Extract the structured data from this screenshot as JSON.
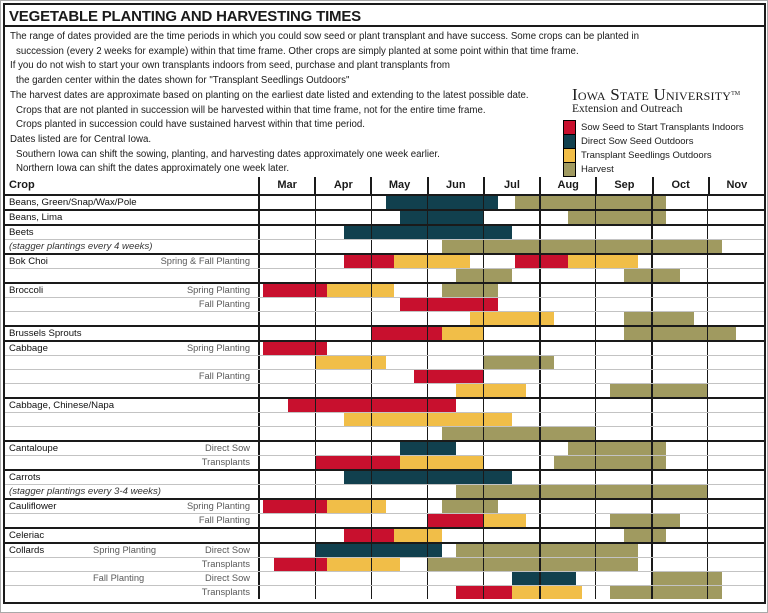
{
  "title": "VEGETABLE PLANTING AND HARVESTING TIMES",
  "notes": {
    "lines": [
      {
        "text": "The range of dates provided are the time periods in which you could sow seed or plant transplant and have success.  Some crops can be planted in",
        "indent": false
      },
      {
        "text": "succession (every 2 weeks for example) within that time frame. Other crops are simply planted at some point within that time frame.",
        "indent": true
      },
      {
        "text": "If you do not wish to start your own transplants indoors from seed, purchase and plant transplants from",
        "indent": false
      },
      {
        "text": "the garden center within the dates shown for \"Transplant Seedlings Outdoors\"",
        "indent": true
      },
      {
        "text": "The harvest dates are approximate based on planting on the earliest date listed and extending to the latest possible date.",
        "indent": false
      },
      {
        "text": "Crops that are not planted in succession will be harvested within that time frame, not for the entire time frame.",
        "indent": true
      },
      {
        "text": "Crops planted in succession could have sustained harvest within that time period.",
        "indent": true
      },
      {
        "text": "Dates listed are for Central Iowa.",
        "indent": false
      },
      {
        "text": "Southern Iowa can shift the sowing, planting, and harvesting dates approximately one week earlier.",
        "indent": true
      },
      {
        "text": "Northern Iowa can shift the dates approximately one week later.",
        "indent": true
      }
    ]
  },
  "logo": {
    "name": "Iowa State University",
    "tm": "TM",
    "subtitle": "Extension and Outreach"
  },
  "legend": {
    "items": [
      {
        "key": "red",
        "label": "Sow Seed to Start Transplants Indoors"
      },
      {
        "key": "teal",
        "label": "Direct Sow Seed Outdoors"
      },
      {
        "key": "yellow",
        "label": "Transplant Seedlings Outdoors"
      },
      {
        "key": "olive",
        "label": "Harvest"
      }
    ]
  },
  "colors": {
    "red": "#C8102E",
    "teal": "#11404E",
    "yellow": "#F1BE48",
    "olive": "#A09A60"
  },
  "header": {
    "crop_label": "Crop"
  },
  "chart_data": {
    "type": "gantt",
    "unit": "months (Mar=0 through Nov=8, fractional = part of month)",
    "month_span": 9,
    "months": [
      "Mar",
      "Apr",
      "May",
      "Jun",
      "Jul",
      "Aug",
      "Sep",
      "Oct",
      "Nov"
    ],
    "series_meaning": {
      "red": "Sow Seed to Start Transplants Indoors",
      "teal": "Direct Sow Seed Outdoors",
      "yellow": "Transplant Seedlings Outdoors",
      "olive": "Harvest"
    },
    "rows": [
      {
        "name": "Beans, Green/Snap/Wax/Pole",
        "group": true,
        "bars": [
          {
            "c": "teal",
            "s": 2.25,
            "e": 4.25
          },
          {
            "c": "olive",
            "s": 4.55,
            "e": 7.25
          }
        ]
      },
      {
        "name": "Beans, Lima",
        "group": true,
        "bars": [
          {
            "c": "teal",
            "s": 2.5,
            "e": 4.0
          },
          {
            "c": "olive",
            "s": 5.5,
            "e": 7.25
          }
        ]
      },
      {
        "name": "Beets",
        "group": true,
        "bars": [
          {
            "c": "teal",
            "s": 1.5,
            "e": 4.5
          }
        ]
      },
      {
        "name": "(stagger plantings every 4 weeks)",
        "italic": true,
        "bars": [
          {
            "c": "olive",
            "s": 3.25,
            "e": 8.25
          }
        ]
      },
      {
        "name": "Bok Choi",
        "method": "Spring & Fall Planting",
        "group": true,
        "bars": [
          {
            "c": "red",
            "s": 1.5,
            "e": 2.4
          },
          {
            "c": "yellow",
            "s": 2.4,
            "e": 3.75
          },
          {
            "c": "red",
            "s": 4.55,
            "e": 5.5
          },
          {
            "c": "yellow",
            "s": 5.5,
            "e": 6.75
          }
        ]
      },
      {
        "bars": [
          {
            "c": "olive",
            "s": 3.5,
            "e": 4.5
          },
          {
            "c": "olive",
            "s": 6.5,
            "e": 7.5
          }
        ]
      },
      {
        "name": "Broccoli",
        "method": "Spring Planting",
        "group": true,
        "bars": [
          {
            "c": "red",
            "s": 0.05,
            "e": 1.2
          },
          {
            "c": "yellow",
            "s": 1.2,
            "e": 2.4
          },
          {
            "c": "olive",
            "s": 3.25,
            "e": 4.25
          }
        ]
      },
      {
        "method": "Fall Planting",
        "bars": [
          {
            "c": "red",
            "s": 2.5,
            "e": 4.25
          }
        ]
      },
      {
        "bars": [
          {
            "c": "yellow",
            "s": 3.75,
            "e": 5.25
          },
          {
            "c": "olive",
            "s": 6.5,
            "e": 7.75
          }
        ]
      },
      {
        "name": "Brussels Sprouts",
        "group": true,
        "bars": [
          {
            "c": "red",
            "s": 2.0,
            "e": 3.25
          },
          {
            "c": "yellow",
            "s": 3.25,
            "e": 4.0
          },
          {
            "c": "olive",
            "s": 6.5,
            "e": 8.5
          }
        ]
      },
      {
        "name": "Cabbage",
        "method": "Spring Planting",
        "group": true,
        "bars": [
          {
            "c": "red",
            "s": 0.05,
            "e": 1.2
          }
        ]
      },
      {
        "bars": [
          {
            "c": "yellow",
            "s": 1.0,
            "e": 2.25
          },
          {
            "c": "olive",
            "s": 4.0,
            "e": 5.25
          }
        ]
      },
      {
        "method": "Fall Planting",
        "bars": [
          {
            "c": "red",
            "s": 2.75,
            "e": 4.0
          }
        ]
      },
      {
        "bars": [
          {
            "c": "yellow",
            "s": 3.5,
            "e": 4.75
          },
          {
            "c": "olive",
            "s": 6.25,
            "e": 8.0
          }
        ]
      },
      {
        "name": "Cabbage, Chinese/Napa",
        "group": true,
        "bars": [
          {
            "c": "red",
            "s": 0.5,
            "e": 3.5
          }
        ]
      },
      {
        "bars": [
          {
            "c": "yellow",
            "s": 1.5,
            "e": 4.5
          }
        ]
      },
      {
        "bars": [
          {
            "c": "olive",
            "s": 3.25,
            "e": 6.0
          }
        ]
      },
      {
        "name": "Cantaloupe",
        "method": "Direct Sow",
        "group": true,
        "bars": [
          {
            "c": "teal",
            "s": 2.5,
            "e": 3.5
          },
          {
            "c": "olive",
            "s": 5.5,
            "e": 7.25
          }
        ]
      },
      {
        "method": "Transplants",
        "bars": [
          {
            "c": "red",
            "s": 1.0,
            "e": 2.5
          },
          {
            "c": "yellow",
            "s": 2.5,
            "e": 4.0
          },
          {
            "c": "olive",
            "s": 5.25,
            "e": 7.25
          }
        ]
      },
      {
        "name": "Carrots",
        "group": true,
        "bars": [
          {
            "c": "teal",
            "s": 1.5,
            "e": 4.5
          }
        ]
      },
      {
        "name": "(stagger plantings every 3-4 weeks)",
        "italic": true,
        "bars": [
          {
            "c": "olive",
            "s": 3.5,
            "e": 8.0
          }
        ]
      },
      {
        "name": "Cauliflower",
        "method": "Spring Planting",
        "group": true,
        "bars": [
          {
            "c": "red",
            "s": 0.05,
            "e": 1.2
          },
          {
            "c": "yellow",
            "s": 1.2,
            "e": 2.25
          },
          {
            "c": "olive",
            "s": 3.25,
            "e": 4.25
          }
        ]
      },
      {
        "method": "Fall Planting",
        "bars": [
          {
            "c": "red",
            "s": 3.0,
            "e": 4.0
          },
          {
            "c": "yellow",
            "s": 4.0,
            "e": 4.75
          },
          {
            "c": "olive",
            "s": 6.25,
            "e": 7.5
          }
        ]
      },
      {
        "name": "Celeriac",
        "group": true,
        "bars": [
          {
            "c": "red",
            "s": 1.5,
            "e": 2.4
          },
          {
            "c": "yellow",
            "s": 2.4,
            "e": 3.25
          },
          {
            "c": "olive",
            "s": 6.5,
            "e": 7.25
          }
        ]
      },
      {
        "name": "Collards",
        "season": "Spring Planting",
        "method": "Direct Sow",
        "group": true,
        "bars": [
          {
            "c": "teal",
            "s": 1.0,
            "e": 3.25
          },
          {
            "c": "olive",
            "s": 3.5,
            "e": 6.75
          }
        ]
      },
      {
        "method": "Transplants",
        "bars": [
          {
            "c": "red",
            "s": 0.25,
            "e": 1.2
          },
          {
            "c": "yellow",
            "s": 1.2,
            "e": 2.5
          },
          {
            "c": "olive",
            "s": 3.0,
            "e": 6.75
          }
        ]
      },
      {
        "season": "Fall Planting",
        "method": "Direct Sow",
        "bars": [
          {
            "c": "teal",
            "s": 4.5,
            "e": 5.65
          },
          {
            "c": "olive",
            "s": 7.0,
            "e": 8.25
          }
        ]
      },
      {
        "method": "Transplants",
        "bars": [
          {
            "c": "red",
            "s": 3.5,
            "e": 4.5
          },
          {
            "c": "yellow",
            "s": 4.5,
            "e": 5.75
          },
          {
            "c": "olive",
            "s": 6.25,
            "e": 8.25
          }
        ]
      }
    ]
  }
}
